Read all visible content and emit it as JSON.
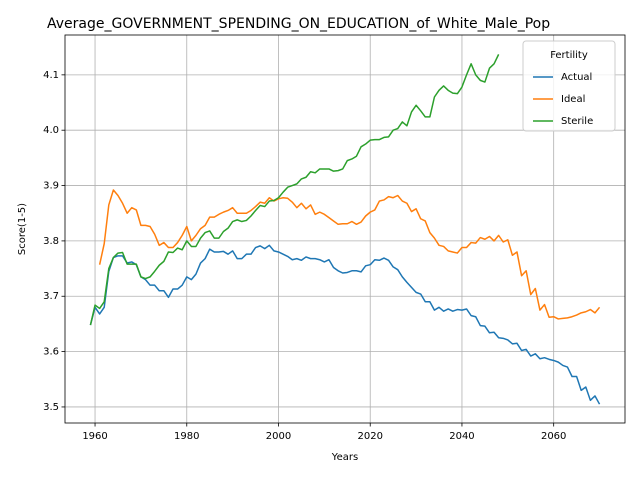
{
  "chart_data": {
    "type": "line",
    "title": "Average_GOVERNMENT_SPENDING_ON_EDUCATION_of_White_Male_Pop",
    "xlabel": "Years",
    "ylabel": "Score(1-5)",
    "legend_title": "Fertility",
    "legend": "upper right",
    "grid": true,
    "xlim": [
      1953.45,
      2075.55
    ],
    "xticks": [
      1960,
      1980,
      2000,
      2020,
      2040,
      2060
    ],
    "ylim": [
      3.471,
      4.172
    ],
    "yticks": [
      3.5,
      3.6,
      3.7,
      3.8,
      3.9,
      {
        "value": 4.0,
        "label": "4.0"
      },
      4.1
    ],
    "x": [
      1959,
      1960,
      1961,
      1962,
      1963,
      1964,
      1965,
      1966,
      1967,
      1968,
      1969,
      1970,
      1971,
      1972,
      1973,
      1974,
      1975,
      1976,
      1977,
      1978,
      1979,
      1980,
      1981,
      1982,
      1983,
      1984,
      1985,
      1986,
      1987,
      1988,
      1989,
      1990,
      1991,
      1992,
      1993,
      1994,
      1995,
      1996,
      1997,
      1998,
      1999,
      2000,
      2001,
      2002,
      2003,
      2004,
      2005,
      2006,
      2007,
      2008,
      2009,
      2010,
      2011,
      2012,
      2013,
      2014,
      2015,
      2016,
      2017,
      2018,
      2019,
      2020,
      2021,
      2022,
      2023,
      2024,
      2025,
      2026,
      2027,
      2028,
      2029,
      2030,
      2031,
      2032,
      2033,
      2034,
      2035,
      2036,
      2037,
      2038,
      2039,
      2040,
      2041,
      2042,
      2043,
      2044,
      2045,
      2046,
      2047,
      2048,
      2049,
      2050,
      2051,
      2052,
      2053,
      2054,
      2055,
      2056,
      2057,
      2058,
      2059,
      2060,
      2061,
      2062,
      2063,
      2064,
      2065,
      2066,
      2067,
      2068,
      2069,
      2070
    ],
    "series": [
      {
        "name": "Actual",
        "color": "#1f77b4",
        "values": [
          3.648,
          3.68,
          3.668,
          3.68,
          3.745,
          3.77,
          3.773,
          3.773,
          3.76,
          3.762,
          3.757,
          3.735,
          3.73,
          3.72,
          3.72,
          3.71,
          3.71,
          3.698,
          3.713,
          3.713,
          3.72,
          3.735,
          3.73,
          3.74,
          3.76,
          3.768,
          3.785,
          3.78,
          3.78,
          3.781,
          3.776,
          3.782,
          3.768,
          3.768,
          3.776,
          3.776,
          3.788,
          3.791,
          3.786,
          3.792,
          3.782,
          3.78,
          3.776,
          3.772,
          3.766,
          3.768,
          3.765,
          3.771,
          3.768,
          3.768,
          3.766,
          3.762,
          3.766,
          3.752,
          3.746,
          3.742,
          3.743,
          3.746,
          3.746,
          3.744,
          3.755,
          3.757,
          3.766,
          3.765,
          3.769,
          3.765,
          3.753,
          3.748,
          3.735,
          3.725,
          3.716,
          3.707,
          3.704,
          3.69,
          3.69,
          3.675,
          3.68,
          3.673,
          3.677,
          3.673,
          3.676,
          3.675,
          3.677,
          3.665,
          3.663,
          3.647,
          3.646,
          3.634,
          3.635,
          3.625,
          3.624,
          3.621,
          3.614,
          3.615,
          3.602,
          3.604,
          3.592,
          3.596,
          3.587,
          3.589,
          3.586,
          3.584,
          3.581,
          3.575,
          3.572,
          3.555,
          3.555,
          3.53,
          3.536,
          3.512,
          3.52,
          3.505
        ]
      },
      {
        "name": "Ideal",
        "color": "#ff7f0e",
        "values": [
          null,
          null,
          3.757,
          3.795,
          3.865,
          3.892,
          3.882,
          3.868,
          3.85,
          3.86,
          3.856,
          3.828,
          3.828,
          3.826,
          3.812,
          3.792,
          3.797,
          3.788,
          3.788,
          3.797,
          3.81,
          3.826,
          3.8,
          3.81,
          3.822,
          3.828,
          3.843,
          3.843,
          3.848,
          3.852,
          3.855,
          3.86,
          3.85,
          3.85,
          3.85,
          3.855,
          3.862,
          3.87,
          3.868,
          3.878,
          3.872,
          3.876,
          3.878,
          3.877,
          3.87,
          3.86,
          3.868,
          3.858,
          3.865,
          3.848,
          3.852,
          3.848,
          3.842,
          3.836,
          3.83,
          3.831,
          3.831,
          3.835,
          3.83,
          3.834,
          3.845,
          3.852,
          3.856,
          3.872,
          3.874,
          3.88,
          3.878,
          3.882,
          3.872,
          3.868,
          3.853,
          3.858,
          3.84,
          3.836,
          3.815,
          3.805,
          3.792,
          3.79,
          3.782,
          3.78,
          3.778,
          3.788,
          3.788,
          3.797,
          3.796,
          3.806,
          3.803,
          3.808,
          3.8,
          3.81,
          3.798,
          3.802,
          3.774,
          3.78,
          3.737,
          3.746,
          3.703,
          3.714,
          3.675,
          3.685,
          3.662,
          3.663,
          3.659,
          3.66,
          3.661,
          3.663,
          3.666,
          3.67,
          3.672,
          3.676,
          3.67,
          3.68
        ]
      },
      {
        "name": "Sterile",
        "color": "#2ca02c",
        "values": [
          3.648,
          3.684,
          3.678,
          3.69,
          3.75,
          3.77,
          3.778,
          3.779,
          3.758,
          3.758,
          3.758,
          3.735,
          3.732,
          3.735,
          3.745,
          3.756,
          3.763,
          3.78,
          3.779,
          3.787,
          3.784,
          3.8,
          3.79,
          3.79,
          3.805,
          3.815,
          3.818,
          3.805,
          3.805,
          3.817,
          3.823,
          3.835,
          3.838,
          3.835,
          3.837,
          3.845,
          3.855,
          3.864,
          3.862,
          3.872,
          3.873,
          3.878,
          3.888,
          3.897,
          3.9,
          3.903,
          3.912,
          3.915,
          3.925,
          3.923,
          3.93,
          3.93,
          3.93,
          3.926,
          3.927,
          3.93,
          3.945,
          3.948,
          3.953,
          3.97,
          3.975,
          3.982,
          3.983,
          3.983,
          3.987,
          3.988,
          4.0,
          4.003,
          4.015,
          4.008,
          4.033,
          4.045,
          4.035,
          4.024,
          4.024,
          4.06,
          4.072,
          4.08,
          4.072,
          4.067,
          4.066,
          4.078,
          4.1,
          4.12,
          4.1,
          4.09,
          4.087,
          4.112,
          4.12,
          4.137,
          null,
          null,
          null,
          null,
          null,
          null,
          null,
          null,
          null,
          null,
          null,
          null,
          null,
          null,
          null,
          null,
          null,
          null,
          null,
          null,
          null,
          null
        ]
      }
    ]
  }
}
